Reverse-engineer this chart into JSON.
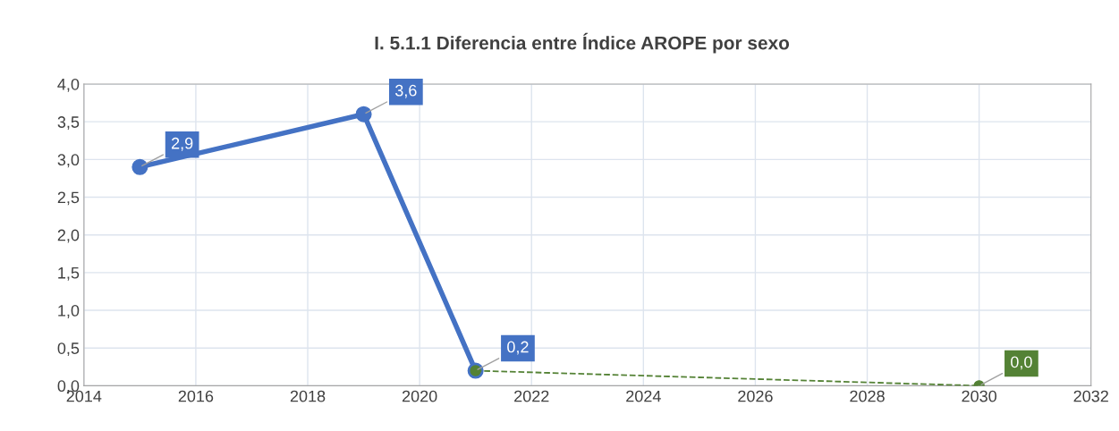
{
  "chart_data": {
    "type": "line",
    "title": "I. 5.1.1 Diferencia entre Índice AROPE por sexo",
    "series": [
      {
        "x": [
          2015,
          2019,
          2021
        ],
        "values": [
          2.9,
          3.6,
          0.2
        ],
        "color": "#4472c4",
        "value_labels": [
          "2,9",
          "3,6",
          "0,2"
        ],
        "line_style": "solid"
      },
      {
        "x": [
          2021,
          2030
        ],
        "values": [
          0.2,
          0.0
        ],
        "color": "#548235",
        "value_labels": [
          null,
          "0,0"
        ],
        "line_style": "dashed"
      }
    ],
    "xlim": [
      2014,
      2032
    ],
    "xticks": [
      2014,
      2016,
      2018,
      2020,
      2022,
      2024,
      2026,
      2028,
      2030,
      2032
    ],
    "ylim": [
      0,
      4
    ],
    "yticks": [
      {
        "value": 0,
        "label": "0,0"
      },
      {
        "value": 0.5,
        "label": "0,5"
      },
      {
        "value": 1,
        "label": "1,0"
      },
      {
        "value": 1.5,
        "label": "1,5"
      },
      {
        "value": 2,
        "label": "2,0"
      },
      {
        "value": 2.5,
        "label": "2,5"
      },
      {
        "value": 3,
        "label": "3,0"
      },
      {
        "value": 3.5,
        "label": "3,5"
      },
      {
        "value": 4,
        "label": "4,0"
      }
    ],
    "grid": true,
    "marker": "circle"
  }
}
